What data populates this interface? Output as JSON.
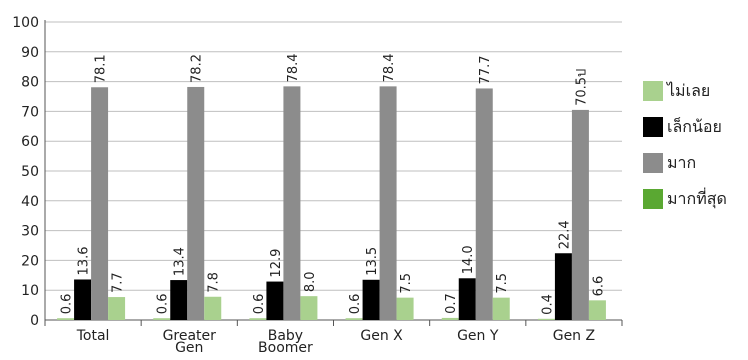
{
  "chart_data": {
    "type": "bar",
    "categories": [
      "Total",
      "Greater Gen",
      "Baby Boomer",
      "Gen X",
      "Gen Y",
      "Gen Z"
    ],
    "series": [
      {
        "name": "ไม่เลย",
        "values": [
          0.6,
          0.6,
          0.6,
          0.6,
          0.7,
          0.4
        ],
        "color": "#a9d18e"
      },
      {
        "name": "เล็กน้อย",
        "values": [
          13.6,
          13.4,
          12.9,
          13.5,
          14.0,
          22.4
        ],
        "color": "#000000"
      },
      {
        "name": "มาก",
        "values": [
          78.1,
          78.2,
          78.4,
          78.4,
          77.7,
          70.5
        ],
        "color": "#8c8c8c"
      },
      {
        "name": "มากที่สุด",
        "values": [
          7.7,
          7.8,
          8.0,
          7.5,
          7.5,
          6.6
        ],
        "color": "#a9d18e"
      }
    ],
    "data_labels": [
      [
        "0.6",
        "0.6",
        "0.6",
        "0.6",
        "0.7",
        "0.4"
      ],
      [
        "13.6",
        "13.4",
        "12.9",
        "13.5",
        "14.0",
        "22.4"
      ],
      [
        "78.1",
        "78.2",
        "78.4",
        "78.4",
        "77.7",
        "70.5ป"
      ],
      [
        "7.7",
        "7.8",
        "8.0",
        "7.5",
        "7.5",
        "6.6"
      ]
    ],
    "yticks": [
      "0",
      "10",
      "20",
      "30",
      "40",
      "50",
      "60",
      "70",
      "80",
      "90",
      "100"
    ],
    "ylim": [
      0,
      100
    ],
    "grid": true,
    "legend_position": "right",
    "legend_colors": [
      "#a9d18e",
      "#000000",
      "#8c8c8c",
      "#5aa832"
    ]
  }
}
